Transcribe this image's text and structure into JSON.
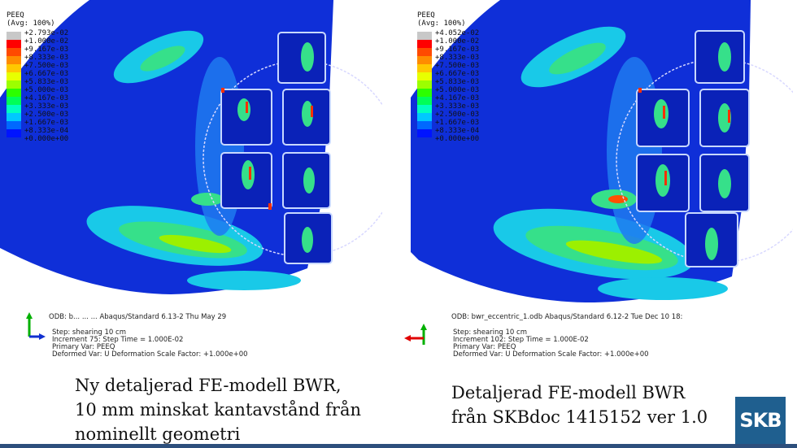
{
  "panels": [
    {
      "legend_title": "PEEQ",
      "legend_avg": "(Avg: 100%)",
      "legend_values": [
        "+2.793e-02",
        "+1.000e-02",
        "+9.167e-03",
        "+8.333e-03",
        "+7.500e-03",
        "+6.667e-03",
        "+5.833e-03",
        "+5.000e-03",
        "+4.167e-03",
        "+3.333e-03",
        "+2.500e-03",
        "+1.667e-03",
        "+8.333e-04",
        "+0.000e+00"
      ],
      "odb_line": "ODB: b... ... ... Abaqus/Standard 6.13-2   Thu May 29",
      "step_line": "Step: shearing 10 cm",
      "increment_line": "Increment     75: Step Time =    1.000E-02",
      "primary_var": "Primary Var: PEEQ",
      "deformed_var": "Deformed Var: U   Deformation Scale Factor: +1.000e+00",
      "caption_lines": [
        "Ny detaljerad FE-modell BWR,",
        "10 mm minskat kantavstånd från",
        "nominellt geometri"
      ]
    },
    {
      "legend_title": "PEEQ",
      "legend_avg": "(Avg: 100%)",
      "legend_values": [
        "+4.052e-02",
        "+1.000e-02",
        "+9.167e-03",
        "+8.333e-03",
        "+7.500e-03",
        "+6.667e-03",
        "+5.833e-03",
        "+5.000e-03",
        "+4.167e-03",
        "+3.333e-03",
        "+2.500e-03",
        "+1.667e-03",
        "+8.333e-04",
        "+0.000e+00"
      ],
      "odb_line": "ODB: bwr_eccentric_1.odb    Abaqus/Standard 6.12-2    Tue Dec 10 18:",
      "step_line": "Step: shearing 10 cm",
      "increment_line": "Increment    102: Step Time =    1.000E-02",
      "primary_var": "Primary Var: PEEQ",
      "deformed_var": "Deformed Var: U   Deformation Scale Factor: +1.000e+00",
      "caption_lines": [
        "Detaljerad FE-modell BWR",
        "från SKBdoc 1415152 ver 1.0"
      ]
    }
  ],
  "legend_colors": [
    "#c8c8c8",
    "#ff0000",
    "#ff4a00",
    "#ff8c00",
    "#ffc800",
    "#e8ff00",
    "#9cff00",
    "#2cff00",
    "#00ff58",
    "#00ffc0",
    "#00c8ff",
    "#0068ff",
    "#0014ff"
  ],
  "logo_text": "SKB",
  "colors": {
    "model_blue": "#0f2fd8",
    "logo_blue": "#1f5f8f",
    "bar": "#2d4f7c"
  }
}
